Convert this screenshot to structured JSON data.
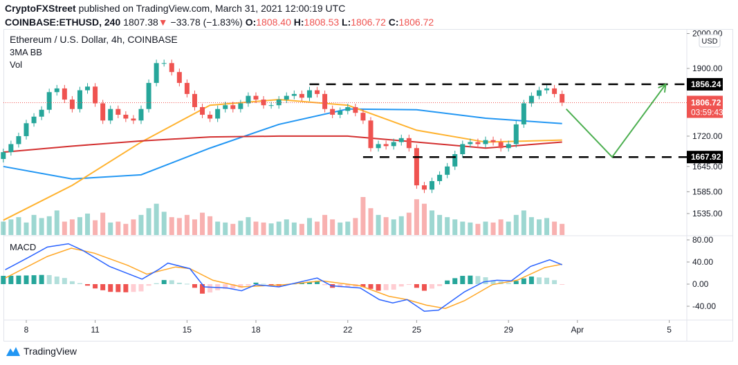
{
  "header": {
    "publisher": "CryptoFXStreet",
    "published_text": "published on TradingView.com, March 31, 2021 12:00:19 UTC",
    "symbol": "COINBASE:ETHUSD, 240",
    "last": "1807.38",
    "change": "−33.78 (−1.83%)",
    "o_label": "O:",
    "o": "1808.40",
    "h_label": "H:",
    "h": "1808.53",
    "l_label": "L:",
    "l": "1806.72",
    "c_label": "C:",
    "c": "1806.72"
  },
  "legend": {
    "title": "Ethereum / U.S. Dollar, 4h, COINBASE",
    "indicator": "3MA BB",
    "volume": "Vol",
    "macd": "MACD"
  },
  "price_axis": {
    "currency": "USD",
    "ticks": [
      "2000.00",
      "1900.00",
      "1720.00",
      "1645.00",
      "1585.00",
      "1535.00"
    ],
    "current_price": "1806.72",
    "countdown": "03:59:43",
    "levels": [
      "1856.24",
      "1667.92"
    ]
  },
  "macd_axis": {
    "ticks": [
      "80.00",
      "40.00",
      "0.00",
      "-40.00"
    ]
  },
  "time_axis": {
    "ticks": [
      "8",
      "11",
      "15",
      "18",
      "22",
      "25",
      "29",
      "Apr",
      "5"
    ]
  },
  "brand": "TradingView",
  "colors": {
    "up": "#26a69a",
    "down": "#ef5350",
    "ma_blue": "#2196f3",
    "ma_orange": "#ffb22e",
    "ma_red": "#d32f2f",
    "macd": "#2962ff",
    "signal": "#ffa726",
    "arrow": "#4caf50",
    "level": "#000000"
  },
  "chart_data": {
    "type": "candlestick",
    "yscale": "log",
    "ylim": [
      1500,
      2000
    ],
    "x_ticks": [
      "Mar 8",
      "Mar 11",
      "Mar 15",
      "Mar 18",
      "Mar 22",
      "Mar 25",
      "Mar 29",
      "Apr 1",
      "Apr 5"
    ],
    "closes": [
      [
        "03-07 00",
        1680
      ],
      [
        "03-07 08",
        1700
      ],
      [
        "03-07 16",
        1720
      ],
      [
        "03-08 00",
        1753
      ],
      [
        "03-08 08",
        1770
      ],
      [
        "03-08 16",
        1788
      ],
      [
        "03-09 00",
        1835
      ],
      [
        "03-09 08",
        1845
      ],
      [
        "03-09 16",
        1815
      ],
      [
        "03-10 00",
        1790
      ],
      [
        "03-10 08",
        1840
      ],
      [
        "03-10 16",
        1850
      ],
      [
        "03-11 00",
        1805
      ],
      [
        "03-11 08",
        1760
      ],
      [
        "03-11 16",
        1790
      ],
      [
        "03-12 00",
        1775
      ],
      [
        "03-12 08",
        1765
      ],
      [
        "03-12 16",
        1760
      ],
      [
        "03-13 00",
        1790
      ],
      [
        "03-13 08",
        1860
      ],
      [
        "03-13 16",
        1915
      ],
      [
        "03-14 00",
        1915
      ],
      [
        "03-14 08",
        1890
      ],
      [
        "03-14 16",
        1860
      ],
      [
        "03-15 00",
        1830
      ],
      [
        "03-15 08",
        1795
      ],
      [
        "03-15 16",
        1775
      ],
      [
        "03-16 00",
        1765
      ],
      [
        "03-16 08",
        1790
      ],
      [
        "03-16 16",
        1800
      ],
      [
        "03-17 00",
        1790
      ],
      [
        "03-17 08",
        1805
      ],
      [
        "03-17 16",
        1825
      ],
      [
        "03-18 00",
        1815
      ],
      [
        "03-18 08",
        1800
      ],
      [
        "03-18 16",
        1800
      ],
      [
        "03-19 00",
        1815
      ],
      [
        "03-19 08",
        1825
      ],
      [
        "03-19 16",
        1830
      ],
      [
        "03-20 00",
        1820
      ],
      [
        "03-20 08",
        1840
      ],
      [
        "03-20 16",
        1830
      ],
      [
        "03-21 00",
        1790
      ],
      [
        "03-21 08",
        1775
      ],
      [
        "03-21 16",
        1785
      ],
      [
        "03-22 00",
        1795
      ],
      [
        "03-22 08",
        1780
      ],
      [
        "03-22 16",
        1760
      ],
      [
        "03-23 00",
        1690
      ],
      [
        "03-23 08",
        1700
      ],
      [
        "03-23 16",
        1695
      ],
      [
        "03-24 00",
        1705
      ],
      [
        "03-24 08",
        1715
      ],
      [
        "03-24 16",
        1690
      ],
      [
        "03-25 00",
        1600
      ],
      [
        "03-25 08",
        1590
      ],
      [
        "03-25 16",
        1610
      ],
      [
        "03-26 00",
        1625
      ],
      [
        "03-26 08",
        1645
      ],
      [
        "03-26 16",
        1675
      ],
      [
        "03-27 00",
        1700
      ],
      [
        "03-27 08",
        1705
      ],
      [
        "03-27 16",
        1700
      ],
      [
        "03-28 00",
        1710
      ],
      [
        "03-28 08",
        1705
      ],
      [
        "03-28 16",
        1690
      ],
      [
        "03-29 00",
        1700
      ],
      [
        "03-29 08",
        1750
      ],
      [
        "03-29 16",
        1805
      ],
      [
        "03-30 00",
        1825
      ],
      [
        "03-30 08",
        1840
      ],
      [
        "03-30 16",
        1845
      ],
      [
        "03-31 00",
        1830
      ],
      [
        "03-31 08",
        1807
      ]
    ],
    "volume": [
      30,
      35,
      40,
      28,
      45,
      38,
      42,
      55,
      30,
      35,
      40,
      48,
      33,
      50,
      28,
      30,
      25,
      35,
      45,
      60,
      70,
      52,
      40,
      38,
      45,
      35,
      50,
      42,
      30,
      28,
      25,
      32,
      40,
      30,
      28,
      26,
      30,
      35,
      28,
      25,
      38,
      30,
      45,
      35,
      28,
      30,
      38,
      85,
      60,
      45,
      40,
      35,
      42,
      50,
      80,
      70,
      55,
      45,
      40,
      35,
      30,
      28,
      25,
      30,
      28,
      35,
      30,
      45,
      55,
      40,
      35,
      38,
      30,
      25
    ],
    "moving_averages": [
      {
        "color": "#2196f3",
        "points": [
          [
            "03-07 00",
            1645
          ],
          [
            "03-10 00",
            1615
          ],
          [
            "03-13 00",
            1625
          ],
          [
            "03-16 00",
            1690
          ],
          [
            "03-19 00",
            1750
          ],
          [
            "03-22 00",
            1790
          ],
          [
            "03-25 00",
            1788
          ],
          [
            "03-28 00",
            1766
          ],
          [
            "03-31 08",
            1752
          ]
        ]
      },
      {
        "color": "#ffb22e",
        "points": [
          [
            "03-07 00",
            1520
          ],
          [
            "03-10 00",
            1600
          ],
          [
            "03-13 00",
            1705
          ],
          [
            "03-16 00",
            1800
          ],
          [
            "03-19 00",
            1815
          ],
          [
            "03-22 00",
            1800
          ],
          [
            "03-25 00",
            1735
          ],
          [
            "03-28 00",
            1705
          ],
          [
            "03-31 08",
            1710
          ]
        ]
      },
      {
        "color": "#d32f2f",
        "points": [
          [
            "03-07 00",
            1680
          ],
          [
            "03-10 00",
            1695
          ],
          [
            "03-13 00",
            1708
          ],
          [
            "03-16 00",
            1718
          ],
          [
            "03-19 00",
            1720
          ],
          [
            "03-22 00",
            1720
          ],
          [
            "03-25 00",
            1705
          ],
          [
            "03-28 00",
            1690
          ],
          [
            "03-31 08",
            1705
          ]
        ]
      }
    ],
    "levels": [
      1856.24,
      1667.92
    ],
    "current_price": 1806.72,
    "projection": [
      [
        "03-31 08",
        1790
      ],
      [
        "04-02 08",
        1667.92
      ],
      [
        "04-04 16",
        1856.24
      ]
    ],
    "macd": {
      "ylim": [
        -55,
        85
      ],
      "macd_line": [
        [
          "03-07 02",
          26
        ],
        [
          "03-08 02",
          48
        ],
        [
          "03-08 22",
          67
        ],
        [
          "03-09 20",
          73
        ],
        [
          "03-10 11",
          61
        ],
        [
          "03-11 15",
          32
        ],
        [
          "03-13 01",
          9
        ],
        [
          "03-13 18",
          26
        ],
        [
          "03-14 04",
          38
        ],
        [
          "03-15 03",
          28
        ],
        [
          "03-15 18",
          -5
        ],
        [
          "03-16 18",
          -7
        ],
        [
          "03-17 09",
          -12
        ],
        [
          "03-18 00",
          -1
        ],
        [
          "03-19 00",
          -5
        ],
        [
          "03-20 16",
          11
        ],
        [
          "03-21 07",
          -3
        ],
        [
          "03-22 13",
          -7
        ],
        [
          "03-23 09",
          -28
        ],
        [
          "03-23 23",
          -34
        ],
        [
          "03-24 14",
          -28
        ],
        [
          "03-25 08",
          -49
        ],
        [
          "03-25 23",
          -47
        ],
        [
          "03-27 02",
          -14
        ],
        [
          "03-27 22",
          4
        ],
        [
          "03-28 12",
          7
        ],
        [
          "03-29 03",
          6
        ],
        [
          "03-29 23",
          32
        ],
        [
          "03-30 19",
          44
        ],
        [
          "03-31 08",
          35
        ]
      ],
      "signal_line": [
        [
          "03-07 02",
          11
        ],
        [
          "03-08 22",
          50
        ],
        [
          "03-09 23",
          65
        ],
        [
          "03-10 23",
          56
        ],
        [
          "03-12 10",
          34
        ],
        [
          "03-13 06",
          18
        ],
        [
          "03-14 12",
          31
        ],
        [
          "03-15 03",
          28
        ],
        [
          "03-16 03",
          7
        ],
        [
          "03-17 09",
          -5
        ],
        [
          "03-19 06",
          -1
        ],
        [
          "03-20 21",
          6
        ],
        [
          "03-22 13",
          -3
        ],
        [
          "03-23 19",
          -22
        ],
        [
          "03-24 14",
          -28
        ],
        [
          "03-25 10",
          -38
        ],
        [
          "03-26 06",
          -44
        ],
        [
          "03-27 02",
          -30
        ],
        [
          "03-28 07",
          -1
        ],
        [
          "03-29 09",
          7
        ],
        [
          "03-30 14",
          30
        ],
        [
          "03-31 08",
          36
        ]
      ]
    }
  }
}
